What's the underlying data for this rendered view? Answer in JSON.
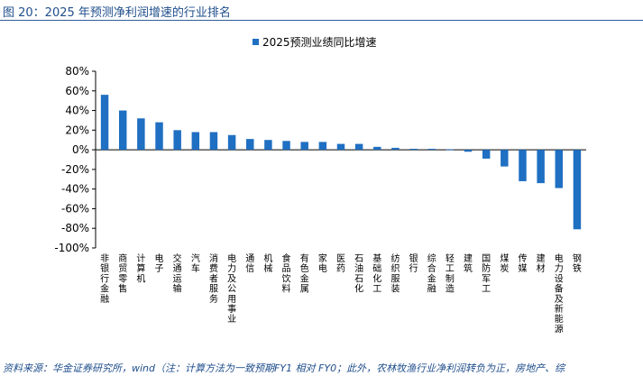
{
  "figure_title": "图 20：2025 年预测净利润增速的行业排名",
  "source_note": "资料来源：华金证券研究所，wind（注：计算方法为一致预期FY1 相对 FY0；此外，农林牧渔行业净利润转负为正，房地产、综",
  "colors": {
    "bar": "#1f6fc2",
    "axis": "#000000",
    "title": "#1f4e8c"
  },
  "chart_data": {
    "type": "bar",
    "title": "",
    "xlabel": "",
    "ylabel": "",
    "ylim": [
      -100,
      80
    ],
    "yticks": [
      80,
      60,
      40,
      20,
      0,
      -20,
      -40,
      -60,
      -80,
      -100
    ],
    "ytick_labels": [
      "80%",
      "60%",
      "40%",
      "20%",
      "0%",
      "-20%",
      "-40%",
      "-60%",
      "-80%",
      "-100%"
    ],
    "grid": false,
    "legend_position": "top-center",
    "categories": [
      "非银行金融",
      "商贸零售",
      "计算机",
      "电子",
      "交通运输",
      "汽车",
      "消费者服务",
      "电力及公用事业",
      "通信",
      "机械",
      "食品饮料",
      "有色金属",
      "家电",
      "医药",
      "石油石化",
      "基础化工",
      "纺织服装",
      "银行",
      "综合金融",
      "轻工制造",
      "建筑",
      "国防军工",
      "煤炭",
      "传媒",
      "建材",
      "电力设备及新能源",
      "钢铁"
    ],
    "series": [
      {
        "name": "2025预测业绩同比增速",
        "values": [
          56,
          40,
          32,
          28,
          20,
          18,
          18,
          15,
          11,
          10,
          9,
          8,
          8,
          6,
          6,
          3,
          2,
          1,
          1,
          0.5,
          -2,
          -9,
          -17,
          -32,
          -34,
          -39,
          -81
        ]
      }
    ]
  }
}
